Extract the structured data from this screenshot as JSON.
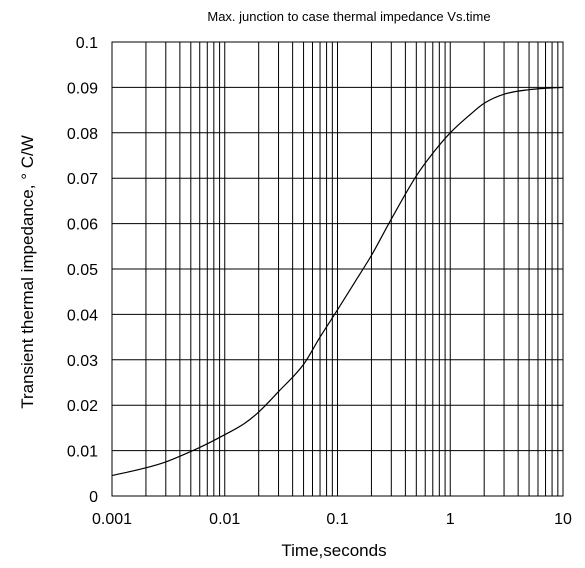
{
  "chart_data": {
    "type": "line",
    "title": "Max. junction to case thermal impedance Vs.time",
    "xlabel": "Time,seconds",
    "ylabel": "Transient  thermal impedance, ° C/W",
    "x_scale": "log",
    "xlim": [
      0.001,
      10
    ],
    "ylim": [
      0,
      0.1
    ],
    "x_ticks": [
      0.001,
      0.01,
      0.1,
      1,
      10
    ],
    "x_tick_labels": [
      "0.001",
      "0.01",
      "0.1",
      "1",
      "10"
    ],
    "y_ticks": [
      0,
      0.01,
      0.02,
      0.03,
      0.04,
      0.05,
      0.06,
      0.07,
      0.08,
      0.09,
      0.1
    ],
    "y_tick_labels": [
      "0",
      "0.01",
      "0.02",
      "0.03",
      "0.04",
      "0.05",
      "0.06",
      "0.07",
      "0.08",
      "0.09",
      "0.1"
    ],
    "grid": true,
    "legend": "none",
    "series": [
      {
        "x": [
          0.001,
          0.002,
          0.003,
          0.005,
          0.007,
          0.01,
          0.015,
          0.02,
          0.03,
          0.05,
          0.07,
          0.1,
          0.15,
          0.2,
          0.3,
          0.5,
          0.7,
          1,
          1.5,
          2,
          3,
          5,
          7,
          10
        ],
        "y": [
          0.0045,
          0.0062,
          0.0075,
          0.0098,
          0.0115,
          0.0135,
          0.016,
          0.0185,
          0.023,
          0.029,
          0.035,
          0.041,
          0.048,
          0.053,
          0.061,
          0.0705,
          0.0755,
          0.08,
          0.084,
          0.0865,
          0.0885,
          0.0895,
          0.0898,
          0.09
        ],
        "color": "#000000"
      }
    ]
  }
}
